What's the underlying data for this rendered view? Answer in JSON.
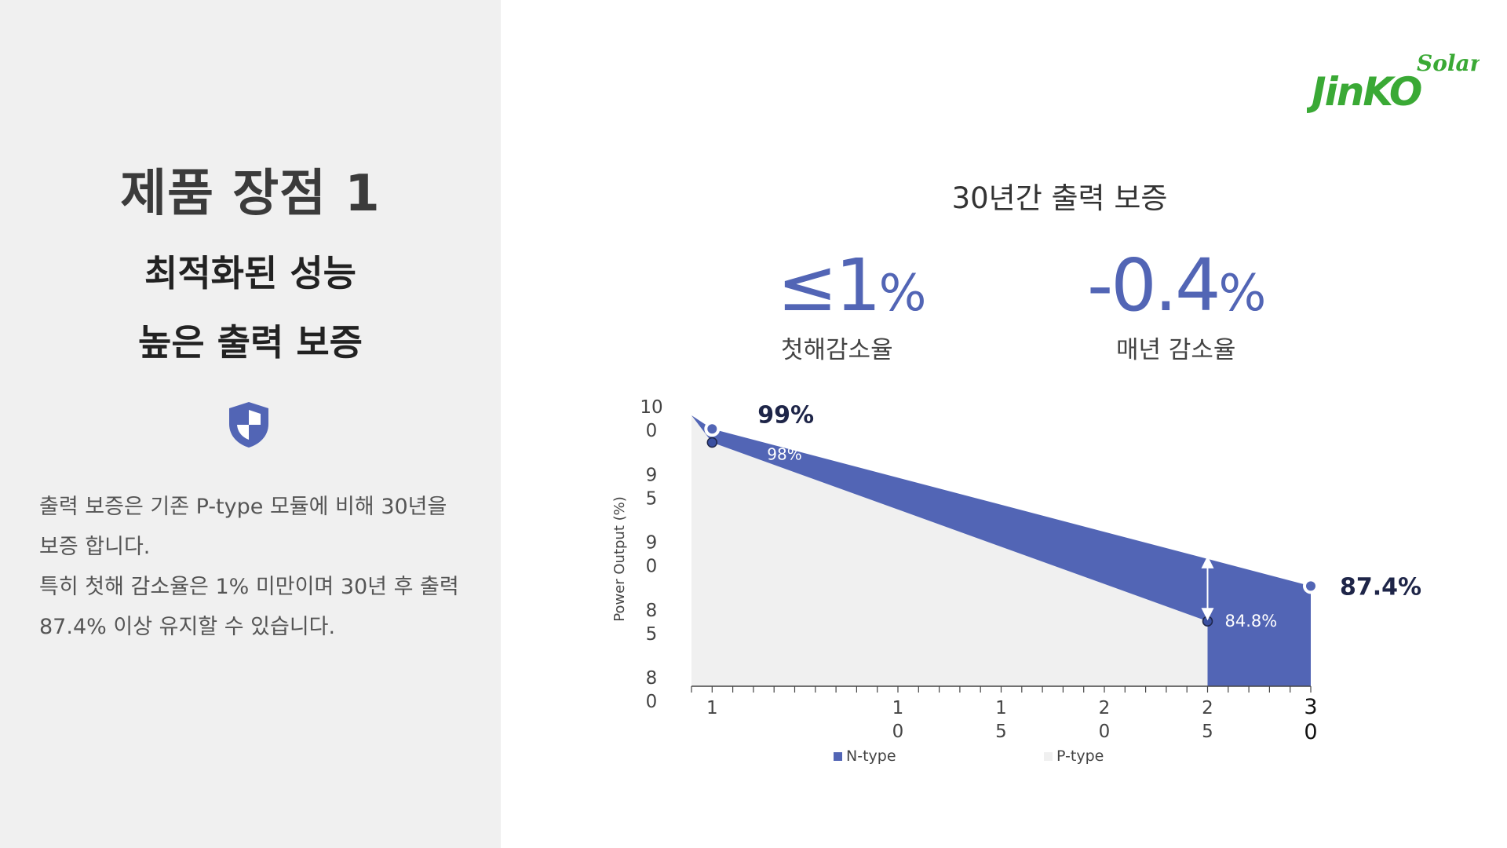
{
  "left": {
    "title": "제품 장점 1",
    "subtitle1": "최적화된 성능",
    "subtitle2": "높은 출력 보증",
    "desc_lines": [
      "출력 보증은 기존 P-type 모듈에 비해 30년을",
      "보증 합니다.",
      "특히 첫해 감소율은 1% 미만이며 30년 후 출력",
      "87.4% 이상 유지할 수 있습니다."
    ]
  },
  "logo": {
    "script": "Solar",
    "brand": "JinKO"
  },
  "header": {
    "chart_title": "30년간 출력 보증",
    "stat1_value": "≤1",
    "stat1_unit": "%",
    "stat1_label": "첫해감소율",
    "stat2_value": "-0.4",
    "stat2_unit": "%",
    "stat2_label": "매년 감소율"
  },
  "colors": {
    "accent": "#5265b5",
    "p_type_fill": "#f0f0f0",
    "dark_label": "#1e2548",
    "logo_green": "#3aa935"
  },
  "chart_data": {
    "type": "area",
    "ylabel": "Power Output (%)",
    "xlabel": "",
    "ylim": [
      80,
      100
    ],
    "xlim": [
      0,
      30
    ],
    "y_ticks": [
      "10\n0",
      "9\n5",
      "9\n0",
      "8\n5",
      "8\n0"
    ],
    "x_ticks": [
      {
        "x": 1,
        "label": "1"
      },
      {
        "x": 10,
        "label": "1\n0"
      },
      {
        "x": 15,
        "label": "1\n5"
      },
      {
        "x": 20,
        "label": "2\n0"
      },
      {
        "x": 25,
        "label": "2\n5"
      },
      {
        "x": 30,
        "label": "3\n0"
      }
    ],
    "series": [
      {
        "name": "N-type",
        "color": "#5265b5",
        "x": [
          0,
          1,
          30
        ],
        "values": [
          100,
          99,
          87.4
        ]
      },
      {
        "name": "P-type",
        "color": "#f0f0f0",
        "x": [
          0,
          1,
          25
        ],
        "values": [
          100,
          98,
          84.8
        ]
      }
    ],
    "annotations": [
      {
        "text": "99%",
        "x": 1,
        "y": 99
      },
      {
        "text": "98%",
        "x": 1,
        "y": 98
      },
      {
        "text": "84.8%",
        "x": 25,
        "y": 84.8
      },
      {
        "text": "87.4%",
        "x": 30,
        "y": 87.4
      }
    ],
    "legend": "bottom"
  }
}
